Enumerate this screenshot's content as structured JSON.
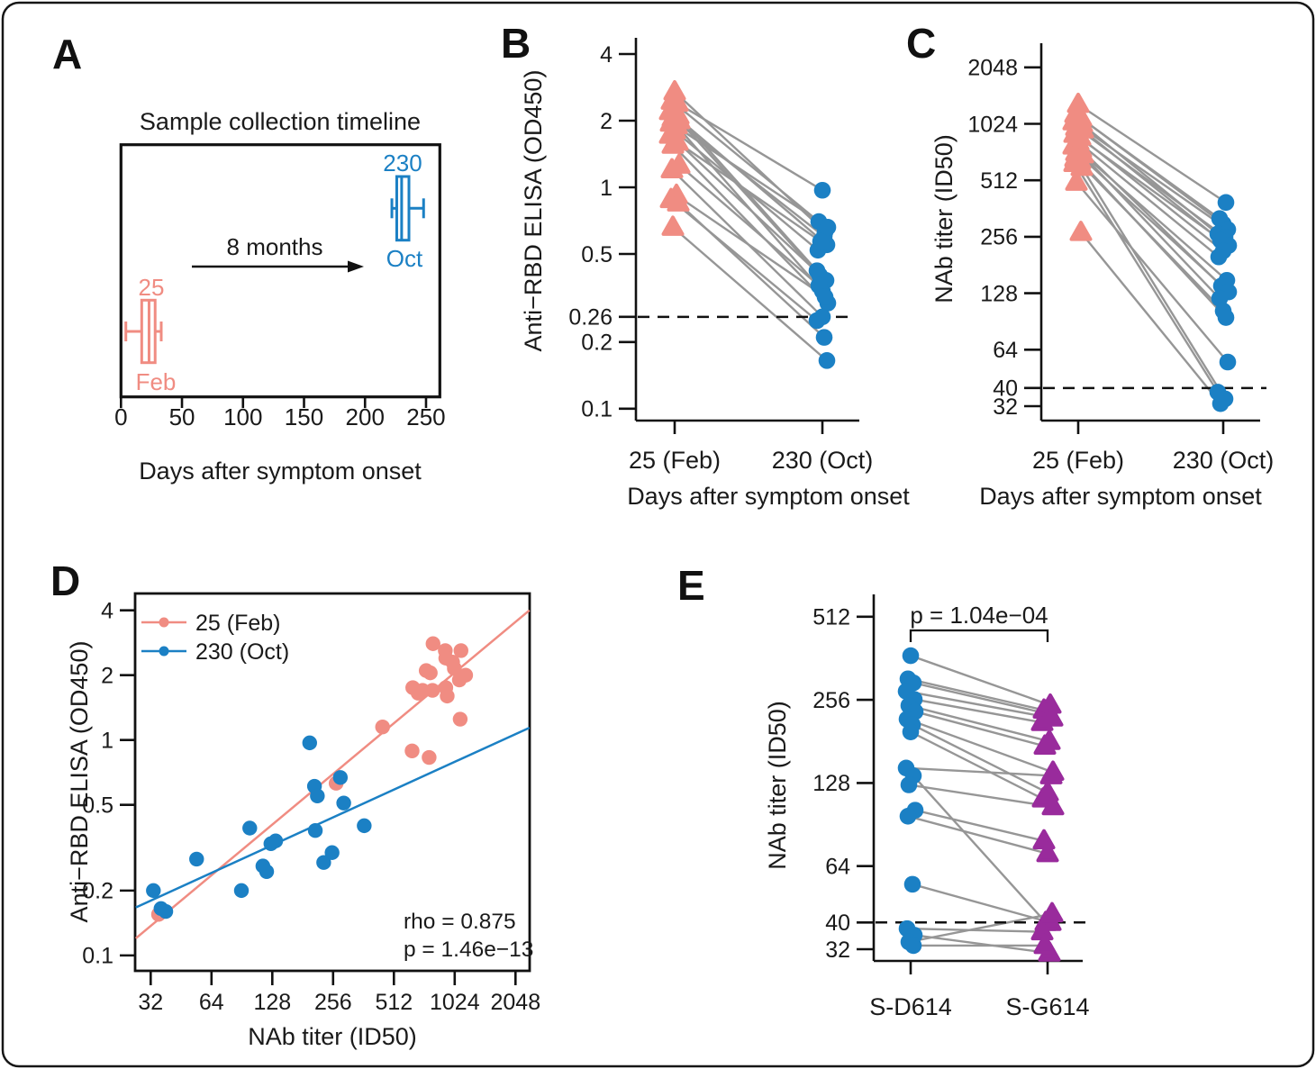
{
  "colors": {
    "feb": "#F08C82",
    "oct": "#1B80C4",
    "g614": "#992B9C",
    "connector": "#969696",
    "axis": "#111111",
    "text": "#1A1A1A"
  },
  "chart_data": [
    {
      "id": "A",
      "label": "A",
      "type": "box-timeline",
      "title": "Sample collection timeline",
      "xlabel": "Days after symptom onset",
      "xticks": [
        0,
        50,
        100,
        150,
        200,
        250
      ],
      "xlim": [
        0,
        262
      ],
      "boxes": [
        {
          "group": "Feb",
          "top_label": "25",
          "bottom_label": "Feb",
          "color": "feb",
          "stats": {
            "low": 4,
            "q1": 17,
            "median": 23,
            "q3": 28,
            "high": 33
          }
        },
        {
          "group": "Oct",
          "top_label": "230",
          "bottom_label": "Oct",
          "color": "oct",
          "stats": {
            "low": 222,
            "q1": 226,
            "median": 230,
            "q3": 236,
            "high": 248
          }
        }
      ],
      "arrow_label": "8 months"
    },
    {
      "id": "B",
      "label": "B",
      "type": "paired",
      "ylabel": "Anti−RBD ELISA (OD450)",
      "xlabel": "Days after symptom onset",
      "categories": [
        "25 (Feb)",
        "230 (Oct)"
      ],
      "yticks": [
        4,
        2,
        1,
        0.5,
        0.26,
        0.2,
        0.1
      ],
      "threshold": 0.26,
      "left": {
        "marker": "triangle",
        "color": "feb"
      },
      "right": {
        "marker": "circle",
        "color": "oct"
      },
      "pairs": [
        [
          2.7,
          0.63
        ],
        [
          2.45,
          0.7
        ],
        [
          2.4,
          0.97
        ],
        [
          2.2,
          0.55
        ],
        [
          2.1,
          0.42
        ],
        [
          2.05,
          0.6
        ],
        [
          2.0,
          0.4
        ],
        [
          1.95,
          0.66
        ],
        [
          1.9,
          0.34
        ],
        [
          1.8,
          0.52
        ],
        [
          1.72,
          0.38
        ],
        [
          1.6,
          0.57
        ],
        [
          1.55,
          0.3
        ],
        [
          1.26,
          0.36
        ],
        [
          1.2,
          0.26
        ],
        [
          0.92,
          0.32
        ],
        [
          0.88,
          0.25
        ],
        [
          0.85,
          0.21
        ],
        [
          0.66,
          0.165
        ]
      ]
    },
    {
      "id": "C",
      "label": "C",
      "type": "paired",
      "ylabel": "NAb titer (ID50)",
      "xlabel": "Days after symptom onset",
      "categories": [
        "25 (Feb)",
        "230 (Oct)"
      ],
      "yticks": [
        2048,
        1024,
        512,
        256,
        128,
        64,
        40,
        32
      ],
      "threshold": 40,
      "left": {
        "marker": "triangle",
        "color": "feb"
      },
      "right": {
        "marker": "circle",
        "color": "oct"
      },
      "pairs": [
        [
          1300,
          390
        ],
        [
          1150,
          320
        ],
        [
          1100,
          300
        ],
        [
          1050,
          280
        ],
        [
          1024,
          265
        ],
        [
          980,
          255
        ],
        [
          950,
          245
        ],
        [
          900,
          230
        ],
        [
          870,
          215
        ],
        [
          820,
          200
        ],
        [
          780,
          150
        ],
        [
          750,
          140
        ],
        [
          720,
          130
        ],
        [
          700,
          120
        ],
        [
          670,
          103
        ],
        [
          650,
          95
        ],
        [
          630,
          38
        ],
        [
          600,
          35
        ],
        [
          500,
          55
        ],
        [
          270,
          33
        ]
      ]
    },
    {
      "id": "D",
      "label": "D",
      "type": "scatter",
      "xlabel": "NAb titer (ID50)",
      "ylabel": "Anti−RBD ELISA (OD450)",
      "xticks": [
        32,
        64,
        128,
        256,
        512,
        1024,
        2048
      ],
      "yticks": [
        4,
        2,
        1,
        0.5,
        0.2,
        0.1
      ],
      "legend_position": "top-left",
      "series": [
        {
          "name": "25 (Feb)",
          "color": "feb",
          "points": [
            [
              800,
              2.8
            ],
            [
              920,
              2.6
            ],
            [
              1100,
              2.6
            ],
            [
              925,
              2.4
            ],
            [
              1000,
              2.3
            ],
            [
              1020,
              2.15
            ],
            [
              740,
              2.1
            ],
            [
              775,
              2.05
            ],
            [
              1160,
              2.0
            ],
            [
              1080,
              1.9
            ],
            [
              635,
              1.75
            ],
            [
              710,
              1.7
            ],
            [
              795,
              1.7
            ],
            [
              925,
              1.75
            ],
            [
              675,
              1.65
            ],
            [
              940,
              1.6
            ],
            [
              1090,
              1.25
            ],
            [
              450,
              1.15
            ],
            [
              630,
              0.89
            ],
            [
              765,
              0.83
            ],
            [
              265,
              0.63
            ],
            [
              35,
              0.155
            ]
          ],
          "trend": [
            [
              27,
              0.12
            ],
            [
              2400,
              4.0
            ]
          ]
        },
        {
          "name": "230 (Oct)",
          "color": "oct",
          "points": [
            [
              33,
              0.2
            ],
            [
              36,
              0.165
            ],
            [
              38,
              0.16
            ],
            [
              54,
              0.28
            ],
            [
              90,
              0.2
            ],
            [
              99,
              0.39
            ],
            [
              115,
              0.26
            ],
            [
              120,
              0.245
            ],
            [
              126,
              0.33
            ],
            [
              133,
              0.34
            ],
            [
              196,
              0.97
            ],
            [
              207,
              0.61
            ],
            [
              214,
              0.55
            ],
            [
              209,
              0.38
            ],
            [
              230,
              0.27
            ],
            [
              253,
              0.3
            ],
            [
              278,
              0.67
            ],
            [
              289,
              0.51
            ],
            [
              365,
              0.4
            ]
          ],
          "trend": [
            [
              27,
              0.167
            ],
            [
              2400,
              1.14
            ]
          ]
        }
      ],
      "annotations": [
        "rho = 0.875",
        "p = 1.46e−13"
      ]
    },
    {
      "id": "E",
      "label": "E",
      "type": "paired",
      "ylabel": "NAb titer (ID50)",
      "categories": [
        "S-D614",
        "S-G614"
      ],
      "yticks": [
        512,
        256,
        128,
        64,
        40,
        32
      ],
      "threshold": 40,
      "p_label": "p = 1.04e−04",
      "left": {
        "marker": "circle",
        "color": "oct"
      },
      "right": {
        "marker": "triangle",
        "color": "g614"
      },
      "pairs": [
        [
          370,
          245
        ],
        [
          305,
          235
        ],
        [
          295,
          228
        ],
        [
          275,
          220
        ],
        [
          257,
          212
        ],
        [
          244,
          181
        ],
        [
          232,
          174
        ],
        [
          218,
          140
        ],
        [
          208,
          118
        ],
        [
          196,
          112
        ],
        [
          145,
          136
        ],
        [
          136,
          40
        ],
        [
          126,
          105
        ],
        [
          102,
          79
        ],
        [
          97,
          71
        ],
        [
          55,
          40
        ],
        [
          38,
          37
        ],
        [
          36,
          31
        ],
        [
          34,
          43
        ],
        [
          33,
          33
        ]
      ]
    }
  ]
}
